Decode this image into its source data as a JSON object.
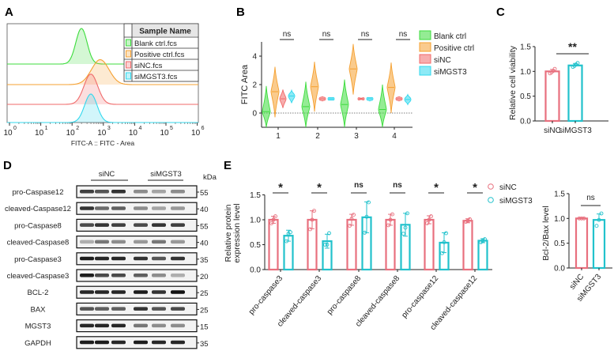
{
  "panel_labels": [
    "A",
    "B",
    "C",
    "D",
    "E"
  ],
  "colors": {
    "green": "#3cdc3c",
    "orange": "#f5a030",
    "red": "#f06a6a",
    "cyan": "#30d8ee",
    "pink_bar": "#e8707e",
    "teal_bar": "#22c2cc"
  },
  "chart_data": [
    {
      "id": "A",
      "type": "histogram-overlay",
      "xlabel": "FITC-A :: FITC - Area",
      "xscale": "log",
      "xlim": [
        1,
        1000000
      ],
      "x_ticks": [
        "0",
        "1",
        "2",
        "3",
        "4",
        "5",
        "6"
      ],
      "x_tick_base": "10",
      "legend_header": "Sample Name",
      "series": [
        {
          "name": "Blank ctrl.fcs",
          "color": "#3cdc3c",
          "peak_log10": 2.3,
          "spread": 0.18,
          "height": 1.0
        },
        {
          "name": "Positive ctrl.fcs",
          "color": "#f5a030",
          "peak_log10": 2.9,
          "spread": 0.28,
          "height": 0.7
        },
        {
          "name": "siNC.fcs",
          "color": "#f06a6a",
          "peak_log10": 2.6,
          "spread": 0.22,
          "height": 0.85
        },
        {
          "name": "siMGST3.fcs",
          "color": "#30d8ee",
          "peak_log10": 2.6,
          "spread": 0.2,
          "height": 0.8
        }
      ]
    },
    {
      "id": "B",
      "type": "violin",
      "ylabel": "FITC Area",
      "ylim": [
        -1,
        5
      ],
      "y_ticks": [
        0,
        2,
        4
      ],
      "categories": [
        "1",
        "2",
        "3",
        "4"
      ],
      "significance": [
        "ns",
        "ns",
        "ns",
        "ns"
      ],
      "series": [
        {
          "name": "Blank ctrl",
          "color": "#3cdc3c",
          "median": [
            0.1,
            0.45,
            0.6,
            0.25
          ],
          "min": [
            -1,
            -1,
            -1,
            -1
          ],
          "max": [
            1.9,
            2.2,
            2.35,
            2.0
          ]
        },
        {
          "name": "Positive ctrl",
          "color": "#f5a030",
          "median": [
            1.5,
            1.85,
            3.1,
            1.8
          ],
          "min": [
            -0.3,
            0.1,
            1.3,
            0.0
          ],
          "max": [
            3.25,
            3.6,
            4.85,
            3.55
          ]
        },
        {
          "name": "siNC",
          "color": "#f06a6a",
          "median": [
            1.0,
            1.0,
            1.0,
            1.0
          ],
          "min": [
            0.35,
            0.85,
            0.95,
            0.85
          ],
          "max": [
            1.65,
            1.15,
            1.05,
            1.15
          ]
        },
        {
          "name": "siMGST3",
          "color": "#30d8ee",
          "median": [
            1.2,
            1.0,
            1.0,
            0.95
          ],
          "min": [
            0.7,
            0.9,
            0.85,
            0.6
          ],
          "max": [
            1.6,
            1.1,
            1.1,
            1.3
          ]
        }
      ]
    },
    {
      "id": "C",
      "type": "bar",
      "ylabel": "Relative cell viability",
      "ylim": [
        0,
        1.5
      ],
      "y_ticks": [
        "0.0",
        "0.5",
        "1.0",
        "1.5"
      ],
      "categories": [
        "siNC",
        "siMGST3"
      ],
      "values": [
        1.0,
        1.12
      ],
      "error": [
        0.04,
        0.04
      ],
      "points": [
        [
          0.96,
          0.98,
          1.01,
          1.05
        ],
        [
          1.09,
          1.11,
          1.14,
          1.17
        ]
      ],
      "colors": [
        "#e8707e",
        "#22c2cc"
      ],
      "significance": "**"
    },
    {
      "id": "E",
      "type": "grouped-bar",
      "ylabel": [
        "Relative protein",
        "expression level"
      ],
      "ylim": [
        0,
        1.5
      ],
      "y_ticks": [
        "0.0",
        "0.5",
        "1.0",
        "1.5"
      ],
      "categories": [
        "pro-caspase3",
        "cleaved-caspase3",
        "pro-caspase8",
        "cleaved-caspase8",
        "pro-caspase12",
        "cleaved-caspase12"
      ],
      "significance": [
        "*",
        "*",
        "ns",
        "ns",
        "*",
        "*"
      ],
      "series": [
        {
          "name": "siNC",
          "color": "#e8707e",
          "values": [
            1.0,
            1.0,
            1.0,
            1.0,
            1.0,
            0.98
          ],
          "error": [
            0.07,
            0.18,
            0.11,
            0.11,
            0.08,
            0.04
          ],
          "points": [
            [
              0.93,
              1.0,
              1.07
            ],
            [
              0.81,
              1.0,
              1.18
            ],
            [
              0.88,
              1.02,
              1.1
            ],
            [
              0.89,
              1.0,
              1.11
            ],
            [
              0.93,
              1.0,
              1.07
            ],
            [
              0.96,
              0.98,
              1.01
            ]
          ]
        },
        {
          "name": "siMGST3",
          "color": "#22c2cc",
          "values": [
            0.68,
            0.57,
            1.05,
            0.9,
            0.54,
            0.58
          ],
          "error": [
            0.11,
            0.14,
            0.31,
            0.23,
            0.2,
            0.04
          ],
          "points": [
            [
              0.57,
              0.72,
              0.75
            ],
            [
              0.5,
              0.5,
              0.73
            ],
            [
              0.74,
              1.06,
              1.35
            ],
            [
              0.72,
              0.84,
              1.13
            ],
            [
              0.33,
              0.55,
              0.73
            ],
            [
              0.55,
              0.58,
              0.61
            ]
          ]
        }
      ]
    },
    {
      "id": "E2",
      "type": "bar",
      "ylabel": "Bcl-2/Bax level",
      "ylim": [
        0,
        1.5
      ],
      "y_ticks": [
        "0.0",
        "0.5",
        "1.0",
        "1.5"
      ],
      "categories": [
        "siNC",
        "siMGST3"
      ],
      "values": [
        1.0,
        0.97
      ],
      "error": [
        0.01,
        0.12
      ],
      "points": [
        [
          1.0,
          1.0,
          1.0
        ],
        [
          0.85,
          0.97,
          1.1
        ]
      ],
      "colors": [
        "#e8707e",
        "#22c2cc"
      ],
      "significance": "ns"
    }
  ],
  "western_blot": {
    "group_labels": [
      "siNC",
      "siMGST3"
    ],
    "kda_header": "kDa",
    "rows": [
      {
        "label": "pro-Caspase12",
        "kda": "55",
        "intensity": [
          0.8,
          0.7,
          0.85,
          0.45,
          0.35,
          0.45
        ]
      },
      {
        "label": "cleaved-Caspase12",
        "kda": "40",
        "intensity": [
          0.85,
          0.6,
          0.65,
          0.45,
          0.35,
          0.4
        ]
      },
      {
        "label": "pro-Caspase8",
        "kda": "55",
        "intensity": [
          0.75,
          0.85,
          0.8,
          0.75,
          0.85,
          0.8
        ]
      },
      {
        "label": "cleaved-Caspase8",
        "kda": "40",
        "intensity": [
          0.3,
          0.55,
          0.45,
          0.4,
          0.55,
          0.4
        ]
      },
      {
        "label": "pro-Caspase3",
        "kda": "35",
        "intensity": [
          0.95,
          0.9,
          0.9,
          0.85,
          0.7,
          0.85
        ]
      },
      {
        "label": "cleaved-Caspase3",
        "kda": "20",
        "intensity": [
          0.95,
          0.75,
          0.75,
          0.65,
          0.45,
          0.3
        ]
      },
      {
        "label": "BCL-2",
        "kda": "25",
        "intensity": [
          0.9,
          0.9,
          0.9,
          0.95,
          0.85,
          1.0
        ]
      },
      {
        "label": "BAX",
        "kda": "25",
        "intensity": [
          0.7,
          0.65,
          0.65,
          0.85,
          0.7,
          0.75
        ]
      },
      {
        "label": "MGST3",
        "kda": "15",
        "intensity": [
          0.9,
          0.9,
          0.9,
          0.55,
          0.45,
          0.45
        ]
      },
      {
        "label": "GAPDH",
        "kda": "35",
        "intensity": [
          0.95,
          0.95,
          0.9,
          0.95,
          0.9,
          0.9
        ]
      }
    ]
  }
}
